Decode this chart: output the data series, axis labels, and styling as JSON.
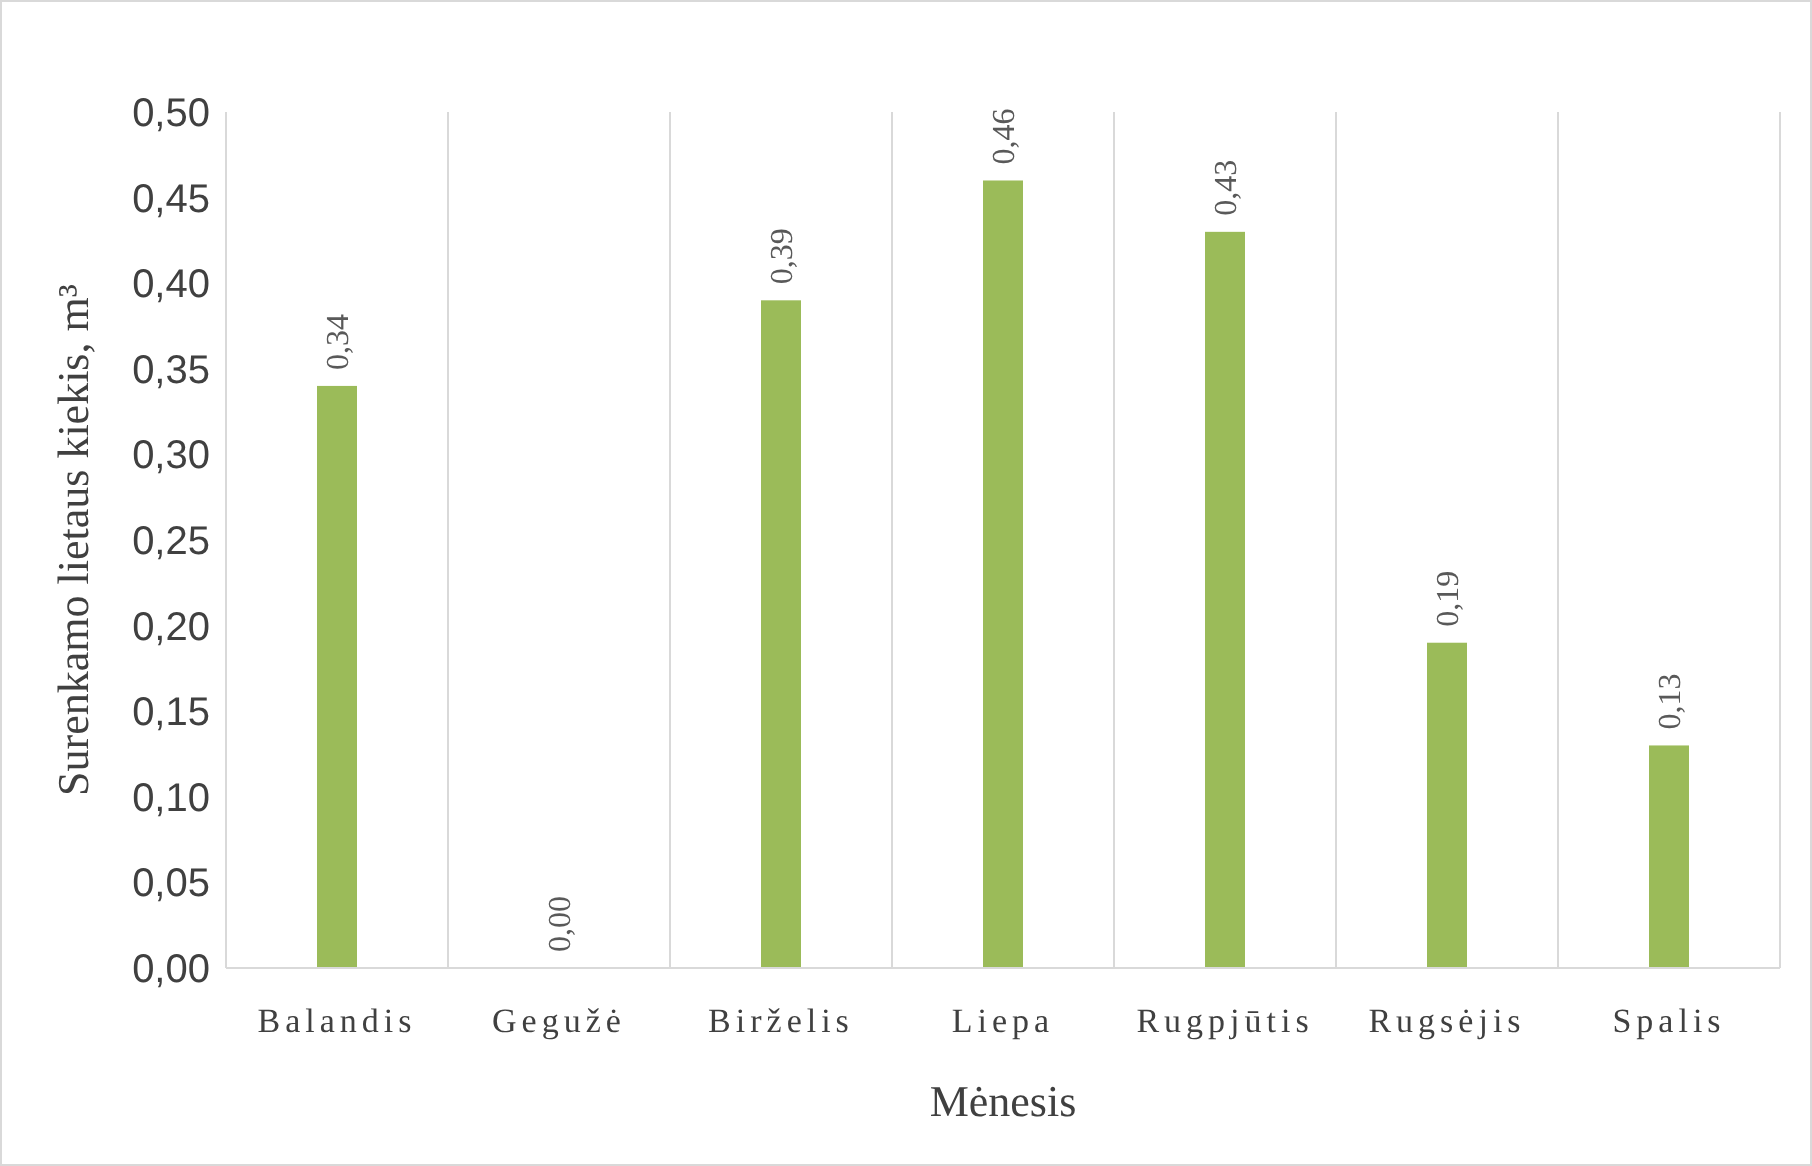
{
  "chart_data": {
    "type": "bar",
    "xlabel": "Mėnesis",
    "ylabel": "Surenkamo lietaus kiekis, m³",
    "categories": [
      "Balandis",
      "Gegužė",
      "Birželis",
      "Liepa",
      "Rugpjūtis",
      "Rugsėjis",
      "Spalis"
    ],
    "values": [
      0.34,
      0.0,
      0.39,
      0.46,
      0.43,
      0.19,
      0.13
    ],
    "value_labels": [
      "0,34",
      "0,00",
      "0,39",
      "0,46",
      "0,43",
      "0,19",
      "0,13"
    ],
    "color": "#9bbb59",
    "ylim": [
      0,
      0.5
    ],
    "yticks": [
      {
        "value": 0,
        "label": "0,00"
      },
      {
        "value": 0.05,
        "label": "0,05"
      },
      {
        "value": 0.1,
        "label": "0,10"
      },
      {
        "value": 0.15,
        "label": "0,15"
      },
      {
        "value": 0.2,
        "label": "0,20"
      },
      {
        "value": 0.25,
        "label": "0,25"
      },
      {
        "value": 0.3,
        "label": "0,30"
      },
      {
        "value": 0.35,
        "label": "0,35"
      },
      {
        "value": 0.4,
        "label": "0,40"
      },
      {
        "value": 0.45,
        "label": "0,45"
      },
      {
        "value": 0.5,
        "label": "0,50"
      }
    ],
    "grid": "x"
  }
}
